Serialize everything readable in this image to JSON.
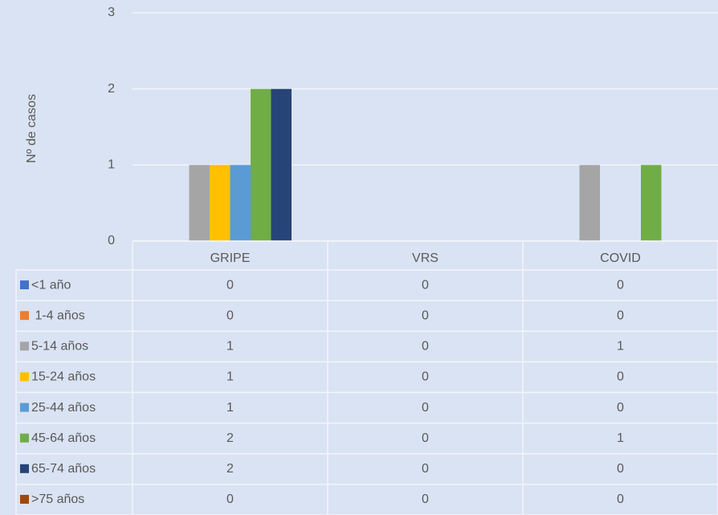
{
  "chart_data": {
    "type": "bar",
    "y_axis_label": "Nº de casos",
    "categories": [
      "GRIPE",
      "VRS",
      "COVID"
    ],
    "series": [
      {
        "name": "<1 año",
        "color": "#4472c4",
        "values": [
          0,
          0,
          0
        ]
      },
      {
        "name": " 1-4 años",
        "color": "#ed7d31",
        "values": [
          0,
          0,
          0
        ]
      },
      {
        "name": "5-14 años",
        "color": "#a5a5a5",
        "values": [
          1,
          0,
          1
        ]
      },
      {
        "name": "15-24 años",
        "color": "#ffc000",
        "values": [
          1,
          0,
          0
        ]
      },
      {
        "name": "25-44 años",
        "color": "#5b9bd5",
        "values": [
          1,
          0,
          0
        ]
      },
      {
        "name": "45-64 años",
        "color": "#70ad47",
        "values": [
          2,
          0,
          1
        ]
      },
      {
        "name": "65-74 años",
        "color": "#264478",
        "values": [
          2,
          0,
          0
        ]
      },
      {
        "name": ">75 años",
        "color": "#9e480e",
        "values": [
          0,
          0,
          0
        ]
      }
    ],
    "ylim": [
      0,
      3
    ],
    "yticks": [
      0,
      1,
      2,
      3
    ],
    "grid": true
  }
}
